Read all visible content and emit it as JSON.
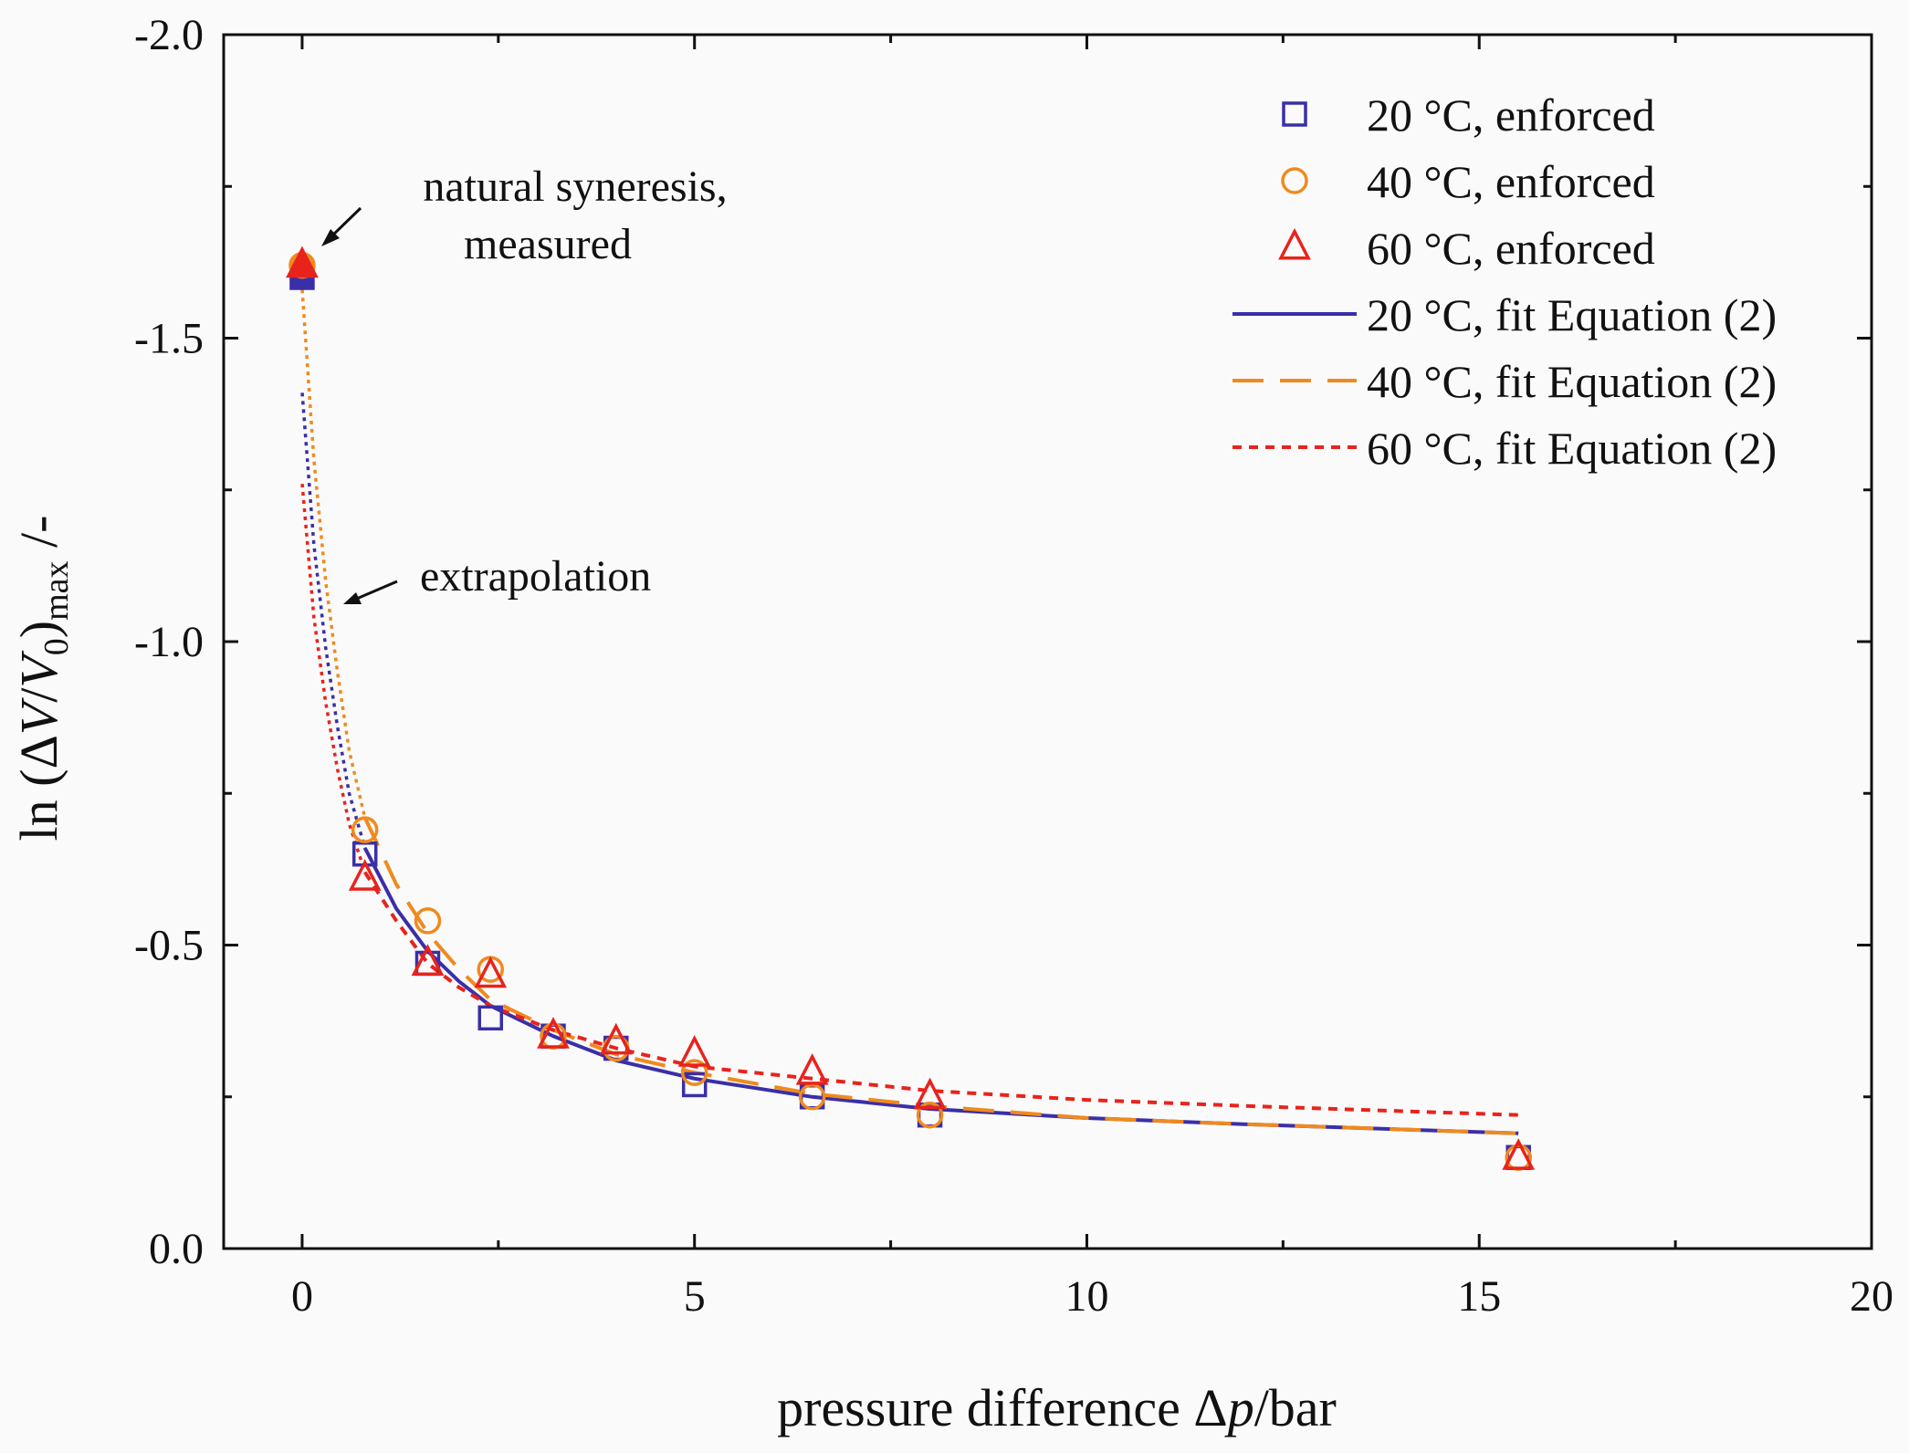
{
  "chart_data": {
    "type": "scatter",
    "title": "",
    "xlabel": {
      "prefix": "pressure difference ",
      "delta": "Δ",
      "var": "p",
      "suffix": "/bar"
    },
    "ylabel": {
      "ln": "ln (Δ",
      "v": "V",
      "slash": "/",
      "v0": "V",
      "sub0": "0",
      "close": ")",
      "submax": "max",
      "suffix": " /-"
    },
    "xlim": [
      -1,
      20
    ],
    "ylim": [
      0.0,
      -2.0
    ],
    "x_ticks": [
      0,
      5,
      10,
      15,
      20
    ],
    "x_tick_labels": [
      "0",
      "5",
      "10",
      "15",
      "20"
    ],
    "y_ticks": [
      0.0,
      -0.5,
      -1.0,
      -1.5,
      -2.0
    ],
    "y_tick_labels": [
      "0.0",
      "-0.5",
      "-1.0",
      "-1.5",
      "-2.0"
    ],
    "colors": {
      "c20": "#3a2fa8",
      "c40": "#f08a1e",
      "c60": "#e8231c"
    },
    "series": [
      {
        "name": "20 °C, enforced",
        "marker": "square",
        "color": "#3a2fa8",
        "x": [
          0.8,
          1.6,
          2.4,
          3.2,
          4.0,
          5.0,
          6.5,
          8.0,
          15.5
        ],
        "y": [
          -0.65,
          -0.47,
          -0.38,
          -0.35,
          -0.33,
          -0.27,
          -0.25,
          -0.22,
          -0.15
        ]
      },
      {
        "name": "40 °C, enforced",
        "marker": "circle",
        "color": "#f08a1e",
        "x": [
          0.8,
          1.6,
          2.4,
          3.2,
          4.0,
          5.0,
          6.5,
          8.0,
          15.5
        ],
        "y": [
          -0.69,
          -0.54,
          -0.46,
          -0.35,
          -0.33,
          -0.29,
          -0.25,
          -0.22,
          -0.15
        ]
      },
      {
        "name": "60 °C, enforced",
        "marker": "triangle",
        "color": "#e8231c",
        "x": [
          0.8,
          1.6,
          2.4,
          3.2,
          4.0,
          5.0,
          6.5,
          8.0,
          15.5
        ],
        "y": [
          -0.61,
          -0.47,
          -0.45,
          -0.35,
          -0.34,
          -0.32,
          -0.29,
          -0.25,
          -0.15
        ]
      }
    ],
    "natural_syneresis_points": [
      {
        "series": "20 °C",
        "x": 0.0,
        "y": -1.6,
        "marker": "square",
        "color": "#3a2fa8"
      },
      {
        "series": "40 °C",
        "x": 0.0,
        "y": -1.62,
        "marker": "circle",
        "color": "#f08a1e"
      },
      {
        "series": "60 °C",
        "x": 0.0,
        "y": -1.62,
        "marker": "triangle",
        "color": "#e8231c"
      }
    ],
    "fits": [
      {
        "name": "20 °C, fit Equation (2)",
        "style": "solid",
        "color": "#3a2fa8",
        "x": [
          0.8,
          1.2,
          1.6,
          2.0,
          2.4,
          3.2,
          4.0,
          5.0,
          6.5,
          8.0,
          10.0,
          12.0,
          15.5
        ],
        "y": [
          -0.66,
          -0.56,
          -0.49,
          -0.44,
          -0.4,
          -0.35,
          -0.31,
          -0.28,
          -0.25,
          -0.23,
          -0.215,
          -0.205,
          -0.19
        ]
      },
      {
        "name": "40 °C, fit Equation (2)",
        "style": "dashed",
        "color": "#f08a1e",
        "x": [
          0.8,
          1.2,
          1.6,
          2.0,
          2.4,
          3.2,
          4.0,
          5.0,
          6.5,
          8.0,
          10.0,
          12.0,
          15.5
        ],
        "y": [
          -0.71,
          -0.6,
          -0.52,
          -0.46,
          -0.41,
          -0.36,
          -0.32,
          -0.29,
          -0.255,
          -0.235,
          -0.215,
          -0.205,
          -0.19
        ]
      },
      {
        "name": "60 °C, fit Equation (2)",
        "style": "dotted",
        "color": "#e8231c",
        "x": [
          0.8,
          1.2,
          1.6,
          2.0,
          2.4,
          3.2,
          4.0,
          5.0,
          6.5,
          8.0,
          10.0,
          12.0,
          15.5
        ],
        "y": [
          -0.62,
          -0.54,
          -0.47,
          -0.43,
          -0.4,
          -0.36,
          -0.33,
          -0.3,
          -0.28,
          -0.26,
          -0.245,
          -0.235,
          -0.22
        ]
      }
    ],
    "extrapolations": [
      {
        "series": "20 °C",
        "color": "#3a2fa8",
        "x": [
          0.0,
          0.15,
          0.3,
          0.45,
          0.6,
          0.8
        ],
        "y": [
          -1.41,
          -1.16,
          -0.99,
          -0.86,
          -0.75,
          -0.66
        ]
      },
      {
        "series": "40 °C",
        "color": "#f08a1e",
        "x": [
          0.0,
          0.15,
          0.3,
          0.45,
          0.6,
          0.8
        ],
        "y": [
          -1.58,
          -1.3,
          -1.1,
          -0.95,
          -0.82,
          -0.71
        ]
      },
      {
        "series": "60 °C",
        "color": "#e8231c",
        "x": [
          0.0,
          0.15,
          0.3,
          0.45,
          0.6,
          0.8
        ],
        "y": [
          -1.26,
          -1.04,
          -0.9,
          -0.79,
          -0.7,
          -0.62
        ]
      }
    ],
    "annotations": {
      "natural_line1": "natural syneresis,",
      "natural_line2": "measured",
      "extrapolation": "extrapolation"
    },
    "legend_position": "top-right"
  }
}
